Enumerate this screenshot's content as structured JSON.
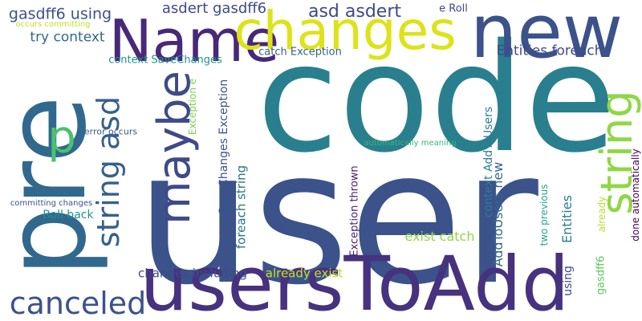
{
  "words": [
    {
      "text": "user",
      "color": "#3b528b",
      "rotated": false
    },
    {
      "text": "code",
      "color": "#2a7f8e",
      "rotated": false
    },
    {
      "text": "pre",
      "color": "#31688e",
      "rotated": true
    },
    {
      "text": "usersToAdd",
      "color": "#46327e",
      "rotated": false
    },
    {
      "text": "new",
      "color": "#3b528b",
      "rotated": false
    },
    {
      "text": "Name",
      "color": "#482878",
      "rotated": false
    },
    {
      "text": "changes",
      "color": "#dde318",
      "rotated": false
    },
    {
      "text": "string",
      "color": "#8fd744",
      "rotated": true
    },
    {
      "text": "maybe",
      "color": "#3e4a89",
      "rotated": true
    },
    {
      "text": "string asd",
      "color": "#35608d",
      "rotated": true
    },
    {
      "text": "canceled",
      "color": "#3b528b",
      "rotated": false
    },
    {
      "text": "p",
      "color": "#4ac16d",
      "rotated": false
    },
    {
      "text": "asd asdert",
      "color": "#3e4a89",
      "rotated": false
    },
    {
      "text": "gasdff6 using",
      "color": "#3b528b",
      "rotated": false
    },
    {
      "text": "asdert gasdff6",
      "color": "#3e4a89",
      "rotated": false
    },
    {
      "text": "try context",
      "color": "#31688e",
      "rotated": false
    },
    {
      "text": "Entities foreach",
      "color": "#3e4a89",
      "rotated": false
    },
    {
      "text": "context SaveChanges",
      "color": "#21918c",
      "rotated": false
    },
    {
      "text": "catch Exception",
      "color": "#35608d",
      "rotated": false
    },
    {
      "text": "e Roll",
      "color": "#3e4a89",
      "rotated": false
    },
    {
      "text": "occurs committing",
      "color": "#bddf26",
      "rotated": false
    },
    {
      "text": "error occurs",
      "color": "#38598c",
      "rotated": false
    },
    {
      "text": "Exception e",
      "color": "#7ad151",
      "rotated": true
    },
    {
      "text": "SaveChanges Exception",
      "color": "#3b528b",
      "rotated": true
    },
    {
      "text": "foreach string",
      "color": "#2c728e",
      "rotated": true
    },
    {
      "text": "Exception thrown",
      "color": "#482173",
      "rotated": true
    },
    {
      "text": "automatically meaning",
      "color": "#35b779",
      "rotated": false
    },
    {
      "text": "context AddToUsers",
      "color": "#2a7f8e",
      "rotated": true
    },
    {
      "text": "AddToUsers new",
      "color": "#31688e",
      "rotated": true
    },
    {
      "text": "exist catch",
      "color": "#8fd744",
      "rotated": false
    },
    {
      "text": "two previous",
      "color": "#22a884",
      "rotated": true
    },
    {
      "text": "Entities",
      "color": "#2a7f8e",
      "rotated": true
    },
    {
      "text": "using",
      "color": "#3e4a89",
      "rotated": true
    },
    {
      "text": "already",
      "color": "#b5de2b",
      "rotated": true
    },
    {
      "text": "gasdff6",
      "color": "#5ec962",
      "rotated": true
    },
    {
      "text": "done automatically",
      "color": "#440154",
      "rotated": true
    },
    {
      "text": "Roll back",
      "color": "#21918c",
      "rotated": false
    },
    {
      "text": "committing changes",
      "color": "#3b528b",
      "rotated": false
    },
    {
      "text": "changes including",
      "color": "#3e4a89",
      "rotated": false
    },
    {
      "text": "already exist",
      "color": "#c8e020",
      "rotated": false
    }
  ]
}
